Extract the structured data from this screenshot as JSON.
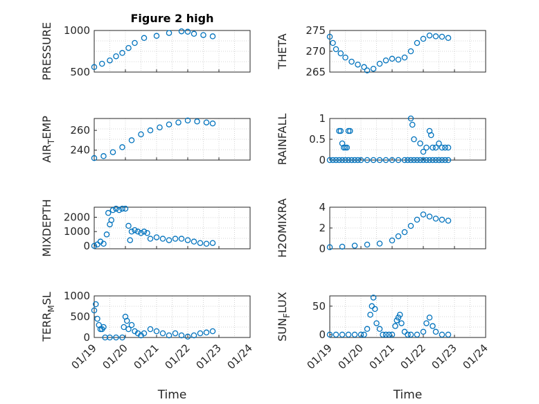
{
  "colors": {
    "marker": "#0072BD",
    "axis": "#262626",
    "grid": "#c8c8c8"
  },
  "chart_data": [
    {
      "type": "scatter",
      "title": "Figure 2 high",
      "ylabel": "PRESSURE",
      "xlabel": "",
      "xlim": [
        0,
        5
      ],
      "ylim": [
        500,
        1000
      ],
      "yticks": [
        500,
        1000
      ],
      "yticklabels": [
        "500",
        "1000"
      ],
      "xticklabels": [],
      "grid": true,
      "x": [
        0,
        0.25,
        0.5,
        0.7,
        0.9,
        1.1,
        1.3,
        1.6,
        2.0,
        2.4,
        2.8,
        3.0,
        3.2,
        3.5,
        3.8
      ],
      "y": [
        560,
        600,
        640,
        690,
        730,
        790,
        850,
        910,
        935,
        970,
        990,
        985,
        960,
        945,
        930
      ]
    },
    {
      "type": "scatter",
      "title": "",
      "ylabel": "THETA",
      "xlabel": "",
      "xlim": [
        0,
        5
      ],
      "ylim": [
        265,
        275
      ],
      "yticks": [
        265,
        270,
        275
      ],
      "yticklabels": [
        "265",
        "270",
        "275"
      ],
      "xticklabels": [],
      "grid": true,
      "x": [
        0,
        0.1,
        0.2,
        0.35,
        0.5,
        0.7,
        0.9,
        1.1,
        1.2,
        1.4,
        1.6,
        1.8,
        2.0,
        2.2,
        2.4,
        2.6,
        2.8,
        3.0,
        3.2,
        3.4,
        3.6,
        3.8
      ],
      "y": [
        273.5,
        272.0,
        270.5,
        269.5,
        268.5,
        267.5,
        266.8,
        266.2,
        265.4,
        265.8,
        267.0,
        267.8,
        268.2,
        268.0,
        268.5,
        270.0,
        272.0,
        273.0,
        273.8,
        273.6,
        273.5,
        273.2
      ]
    },
    {
      "type": "scatter",
      "title": "",
      "ylabel": "AIR_TEMP",
      "xlabel": "",
      "xlim": [
        0,
        5
      ],
      "ylim": [
        230,
        272
      ],
      "yticks": [
        240,
        260
      ],
      "yticklabels": [
        "240",
        "260"
      ],
      "xticklabels": [],
      "grid": true,
      "x": [
        0,
        0.3,
        0.6,
        0.9,
        1.2,
        1.5,
        1.8,
        2.1,
        2.4,
        2.7,
        3.0,
        3.3,
        3.6,
        3.8
      ],
      "y": [
        232,
        234,
        238,
        243,
        250,
        256,
        260,
        263,
        266,
        268,
        270,
        269,
        268,
        267
      ]
    },
    {
      "type": "scatter",
      "title": "",
      "ylabel": "RAINFALL",
      "xlabel": "",
      "xlim": [
        0,
        5
      ],
      "ylim": [
        0,
        1
      ],
      "yticks": [
        0,
        0.5,
        1
      ],
      "yticklabels": [
        "0",
        "0.5",
        "1"
      ],
      "xticklabels": [],
      "grid": true,
      "x": [
        0,
        0.1,
        0.2,
        0.3,
        0.4,
        0.5,
        0.6,
        0.7,
        0.8,
        0.9,
        1.0,
        1.2,
        1.4,
        1.6,
        1.8,
        2.0,
        2.2,
        2.4,
        2.5,
        2.6,
        2.7,
        2.8,
        2.9,
        3.0,
        3.1,
        3.2,
        3.3,
        3.4,
        3.5,
        3.6,
        3.7,
        3.8,
        0.3,
        0.35,
        0.45,
        0.5,
        0.6,
        0.65,
        0.4,
        0.55,
        2.6,
        2.65,
        2.7,
        2.9,
        3.0,
        3.1,
        3.2,
        3.25,
        3.3,
        3.4,
        3.5,
        3.6,
        3.7,
        3.8
      ],
      "y": [
        0,
        0,
        0,
        0,
        0,
        0,
        0,
        0,
        0,
        0,
        0,
        0,
        0,
        0,
        0,
        0,
        0,
        0,
        0,
        0,
        0,
        0,
        0,
        0,
        0,
        0,
        0,
        0,
        0,
        0,
        0,
        0,
        0.7,
        0.7,
        0.3,
        0.3,
        0.7,
        0.7,
        0.4,
        0.3,
        1.0,
        0.85,
        0.5,
        0.4,
        0.2,
        0.3,
        0.7,
        0.6,
        0.3,
        0.3,
        0.4,
        0.3,
        0.3,
        0.3
      ]
    },
    {
      "type": "scatter",
      "title": "",
      "ylabel": "MIXDEPTH",
      "xlabel": "",
      "xlim": [
        0,
        5
      ],
      "ylim": [
        -200,
        2700
      ],
      "yticks": [
        0,
        1000,
        2000
      ],
      "yticklabels": [
        "0",
        "1000",
        "2000"
      ],
      "xticklabels": [],
      "grid": true,
      "x": [
        0,
        0.1,
        0.2,
        0.3,
        0.4,
        0.45,
        0.5,
        0.55,
        0.6,
        0.7,
        0.8,
        0.9,
        1.0,
        1.1,
        1.15,
        1.2,
        1.3,
        1.4,
        1.5,
        1.6,
        1.7,
        1.8,
        2.0,
        2.2,
        2.4,
        2.6,
        2.8,
        3.0,
        3.2,
        3.4,
        3.6,
        3.8
      ],
      "y": [
        0,
        100,
        300,
        150,
        800,
        2300,
        1500,
        1800,
        2500,
        2600,
        2500,
        2600,
        2600,
        1400,
        400,
        1000,
        1100,
        1000,
        900,
        1000,
        900,
        500,
        600,
        500,
        400,
        500,
        500,
        400,
        300,
        200,
        150,
        200
      ]
    },
    {
      "type": "scatter",
      "title": "",
      "ylabel": "H2OMIXRA",
      "xlabel": "",
      "xlim": [
        0,
        5
      ],
      "ylim": [
        0,
        4
      ],
      "yticks": [
        0,
        2,
        4
      ],
      "yticklabels": [
        "0",
        "2",
        "4"
      ],
      "xticklabels": [],
      "grid": true,
      "x": [
        0,
        0.4,
        0.8,
        1.2,
        1.6,
        2.0,
        2.2,
        2.4,
        2.6,
        2.8,
        3.0,
        3.2,
        3.4,
        3.6,
        3.8
      ],
      "y": [
        0.15,
        0.2,
        0.3,
        0.4,
        0.5,
        0.8,
        1.2,
        1.6,
        2.2,
        2.8,
        3.3,
        3.1,
        2.9,
        2.8,
        2.7
      ]
    },
    {
      "type": "scatter",
      "title": "",
      "ylabel": "TERR_MSL",
      "xlabel": "Time",
      "xlim": [
        0,
        5
      ],
      "ylim": [
        0,
        1000
      ],
      "yticks": [
        0,
        500,
        1000
      ],
      "yticklabels": [
        "0",
        "500",
        "1000"
      ],
      "xticks": [
        0,
        1,
        2,
        3,
        4,
        5
      ],
      "xticklabels": [
        "01/19",
        "01/20",
        "01/21",
        "01/22",
        "01/23",
        "01/24"
      ],
      "grid": true,
      "x": [
        0,
        0.05,
        0.1,
        0.15,
        0.2,
        0.25,
        0.3,
        0.35,
        0.5,
        0.7,
        0.9,
        0.95,
        1.0,
        1.05,
        1.1,
        1.2,
        1.3,
        1.4,
        1.5,
        1.6,
        1.8,
        2.0,
        2.2,
        2.4,
        2.6,
        2.8,
        3.0,
        3.2,
        3.4,
        3.6,
        3.8
      ],
      "y": [
        650,
        800,
        450,
        300,
        200,
        200,
        250,
        0,
        0,
        0,
        0,
        250,
        500,
        400,
        200,
        300,
        150,
        100,
        50,
        100,
        200,
        150,
        100,
        50,
        100,
        50,
        20,
        50,
        100,
        120,
        150
      ]
    },
    {
      "type": "scatter",
      "title": "",
      "ylabel": "SUN_FLUX",
      "xlabel": "Time",
      "xlim": [
        0,
        5
      ],
      "ylim": [
        -5,
        68
      ],
      "yticks": [
        0,
        50
      ],
      "yticklabels": [
        "0",
        "50"
      ],
      "xticks": [
        0,
        1,
        2,
        3,
        4,
        5
      ],
      "xticklabels": [
        "01/19",
        "01/20",
        "01/21",
        "01/22",
        "01/23",
        "01/24"
      ],
      "grid": true,
      "x": [
        0,
        0.2,
        0.4,
        0.6,
        0.8,
        1.0,
        1.1,
        1.2,
        1.3,
        1.35,
        1.4,
        1.45,
        1.5,
        1.6,
        1.7,
        1.8,
        1.9,
        2.0,
        2.1,
        2.15,
        2.2,
        2.25,
        2.3,
        2.4,
        2.5,
        2.6,
        2.8,
        3.0,
        3.1,
        3.2,
        3.3,
        3.4,
        3.6,
        3.8
      ],
      "y": [
        0,
        0,
        0,
        0,
        0,
        0,
        0,
        10,
        35,
        50,
        65,
        45,
        20,
        10,
        0,
        0,
        0,
        0,
        15,
        25,
        30,
        35,
        20,
        5,
        0,
        0,
        0,
        5,
        20,
        30,
        15,
        5,
        0,
        0
      ]
    }
  ]
}
